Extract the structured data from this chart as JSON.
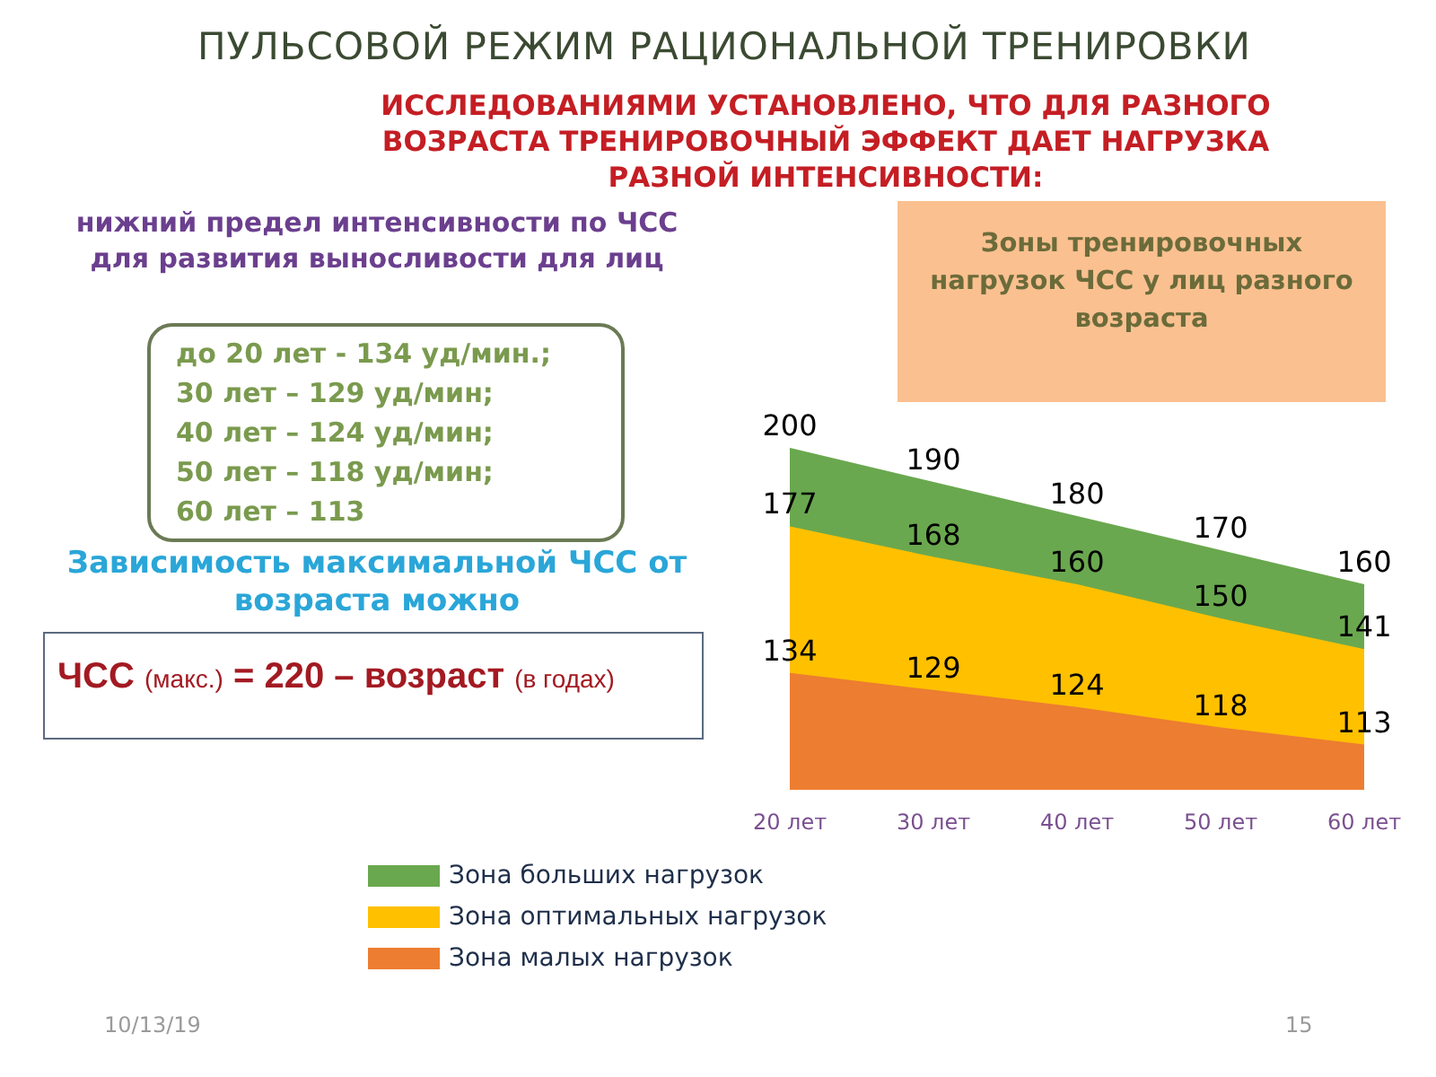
{
  "chart_data": {
    "type": "area",
    "title": "ПУЛЬСОВОЙ РЕЖИМ РАЦИОНАЛЬНОЙ ТРЕНИРОВКИ",
    "subtitle": "ИССЛЕДОВАНИЯМИ УСТАНОВЛЕНО, ЧТО ДЛЯ РАЗНОГО ВОЗРАСТА ТРЕНИРОВОЧНЫЙ ЭФФЕКТ ДАЕТ НАГРУЗКА РАЗНОЙ ИНТЕНСИВНОСТИ:",
    "categories": [
      "20 лет",
      "30 лет",
      "40 лет",
      "50 лет",
      "60 лет"
    ],
    "series": [
      {
        "name": "Зона больших нагрузок",
        "color": "#6aa84f",
        "values": [
          200,
          190,
          180,
          170,
          160
        ]
      },
      {
        "name": "Зона оптимальных нагрузок",
        "color": "#ffc000",
        "values": [
          177,
          168,
          160,
          150,
          141
        ]
      },
      {
        "name": "Зона малых нагрузок",
        "color": "#ed7d31",
        "values": [
          134,
          129,
          124,
          118,
          113
        ]
      }
    ],
    "data_labels": true,
    "legend": "bottom left",
    "annotations": [
      "нижний предел интенсивности по ЧСС для развития выносливости для лиц",
      "до 20 лет - 134 уд/мин.;",
      "30 лет – 129 уд/мин;",
      "40 лет – 124 уд/мин;",
      "50 лет – 118 уд/мин;",
      "60 лет – 113",
      "Зависимость максимальной ЧСС от возраста можно",
      "ЧСС (макс.) = 220 – возраст (в годах)",
      "Зоны тренировочных нагрузок ЧСС у лиц разного возраста",
      "10/13/19",
      "15"
    ]
  }
}
